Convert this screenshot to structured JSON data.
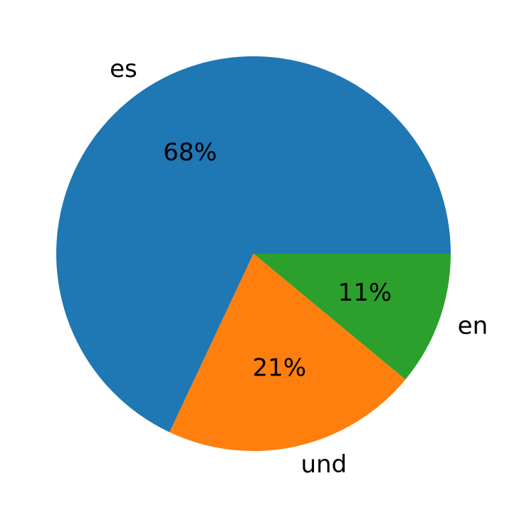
{
  "chart_data": {
    "type": "pie",
    "categories": [
      "es",
      "und",
      "en"
    ],
    "values": [
      68,
      21,
      11
    ],
    "value_labels": [
      "68%",
      "21%",
      "11%"
    ],
    "colors": [
      "#1f77b4",
      "#ff7f0e",
      "#2ca02c"
    ],
    "start_angle": 0,
    "counterclockwise": true
  }
}
